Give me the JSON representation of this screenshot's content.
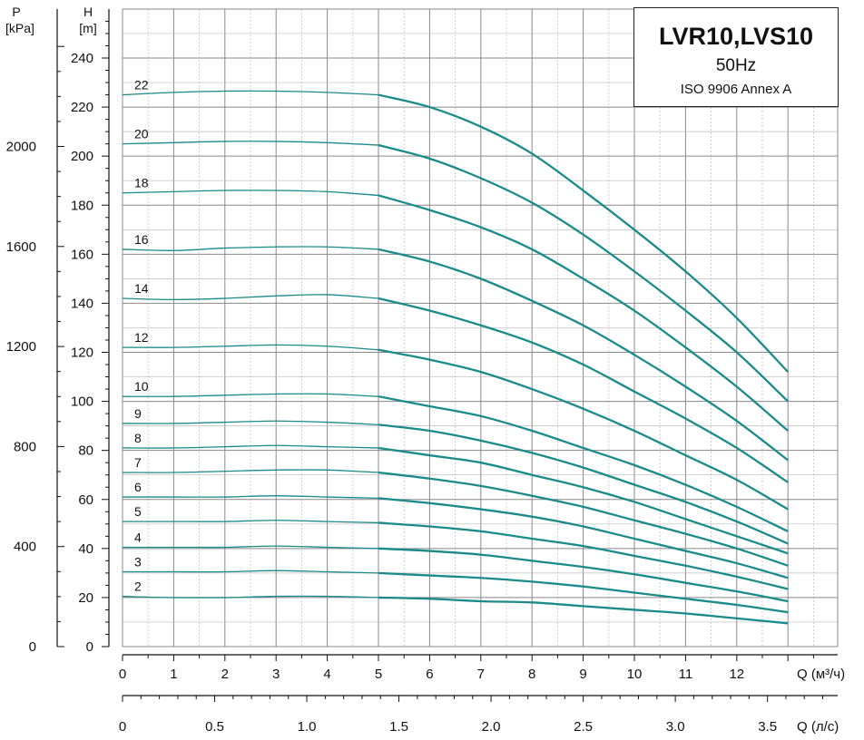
{
  "title_box": {
    "model": "LVR10,LVS10",
    "frequency": "50Hz",
    "standard": "ISO 9906 Annex A"
  },
  "axes": {
    "p_label": "P",
    "p_unit": "[kPa]",
    "h_label": "H",
    "h_unit": "[m]",
    "q_m3h_label": "Q (м³/ч)",
    "q_ls_label": "Q (л/с)"
  },
  "colors": {
    "curve": "#1a8a8a",
    "grid": "#888888",
    "axis": "#111111"
  },
  "chart_data": {
    "type": "line",
    "title": "LVR10,LVS10",
    "xlabel": "Q (м³/ч)",
    "ylabel": "H [m]",
    "xlim": [
      0,
      14
    ],
    "ylim": [
      0,
      240
    ],
    "x_ticks": [
      0,
      1,
      2,
      3,
      4,
      5,
      6,
      7,
      8,
      9,
      10,
      11,
      12
    ],
    "y_ticks": [
      0,
      20,
      40,
      60,
      80,
      100,
      120,
      140,
      160,
      180,
      200,
      220,
      240
    ],
    "p_ticks": [
      0,
      400,
      800,
      1200,
      1600,
      2000
    ],
    "secondary_x_ticks": [
      "0",
      "0.5",
      "1.0",
      "1.5",
      "2.0",
      "2.5",
      "3.0",
      "3.5"
    ],
    "grid": true,
    "x": [
      0,
      1,
      2,
      3,
      4,
      5,
      6,
      7,
      8,
      9,
      10,
      11,
      12,
      13
    ],
    "series": [
      {
        "name": "22",
        "values": [
          225,
          226,
          226.5,
          226.5,
          226,
          225,
          220,
          212,
          201,
          186,
          170,
          153,
          134,
          112
        ]
      },
      {
        "name": "20",
        "values": [
          205,
          205.5,
          206,
          206,
          205.5,
          204.5,
          199,
          191,
          181,
          168,
          153,
          137,
          120,
          100
        ]
      },
      {
        "name": "18",
        "values": [
          185,
          185.5,
          186,
          186,
          185.5,
          184,
          178,
          171,
          162,
          150,
          137,
          122,
          106,
          88
        ]
      },
      {
        "name": "16",
        "values": [
          162,
          161.5,
          162.5,
          163,
          163,
          162,
          157,
          150,
          141,
          131,
          119,
          106,
          92,
          76
        ]
      },
      {
        "name": "14",
        "values": [
          142,
          141.5,
          142,
          143,
          143.5,
          142,
          137,
          131,
          124,
          115,
          104,
          93,
          81,
          67
        ]
      },
      {
        "name": "12",
        "values": [
          122,
          122,
          122.5,
          123,
          122.5,
          121,
          117,
          112,
          105,
          97,
          88,
          78,
          68,
          56
        ]
      },
      {
        "name": "10",
        "values": [
          102,
          102,
          102.5,
          103,
          103,
          102,
          98,
          94,
          88,
          81,
          74,
          66,
          57,
          47
        ]
      },
      {
        "name": "9",
        "values": [
          91,
          91,
          91.5,
          92,
          91.5,
          90.5,
          88,
          84,
          79,
          73,
          66,
          59,
          51,
          42
        ]
      },
      {
        "name": "8",
        "values": [
          81,
          81,
          81.5,
          82,
          81.5,
          81,
          78,
          75,
          70,
          65,
          59,
          52,
          45,
          38
        ]
      },
      {
        "name": "7",
        "values": [
          71,
          71,
          71.5,
          72,
          72,
          71,
          68.5,
          65.5,
          61.5,
          57,
          51.5,
          46,
          40,
          33
        ]
      },
      {
        "name": "6",
        "values": [
          61,
          61,
          61,
          61.5,
          61,
          60.5,
          58.5,
          56,
          53,
          49,
          44,
          39,
          34,
          28
        ]
      },
      {
        "name": "5",
        "values": [
          51,
          51,
          51,
          51.5,
          51,
          50.5,
          49,
          47,
          44,
          41,
          37,
          33,
          28.5,
          23.5
        ]
      },
      {
        "name": "4",
        "values": [
          40.5,
          40.5,
          40.5,
          41,
          40.5,
          40,
          39,
          37.5,
          35,
          32.5,
          29.5,
          26,
          22.5,
          18.5
        ]
      },
      {
        "name": "3",
        "values": [
          30.5,
          30.5,
          30.5,
          31,
          30.5,
          30,
          29,
          28,
          26.5,
          24.5,
          22,
          19.5,
          17,
          14
        ]
      },
      {
        "name": "2",
        "values": [
          20.5,
          20,
          20,
          20.5,
          20.5,
          20,
          19.5,
          18.5,
          18,
          16.5,
          15,
          13.5,
          11.5,
          9.5
        ]
      }
    ]
  }
}
